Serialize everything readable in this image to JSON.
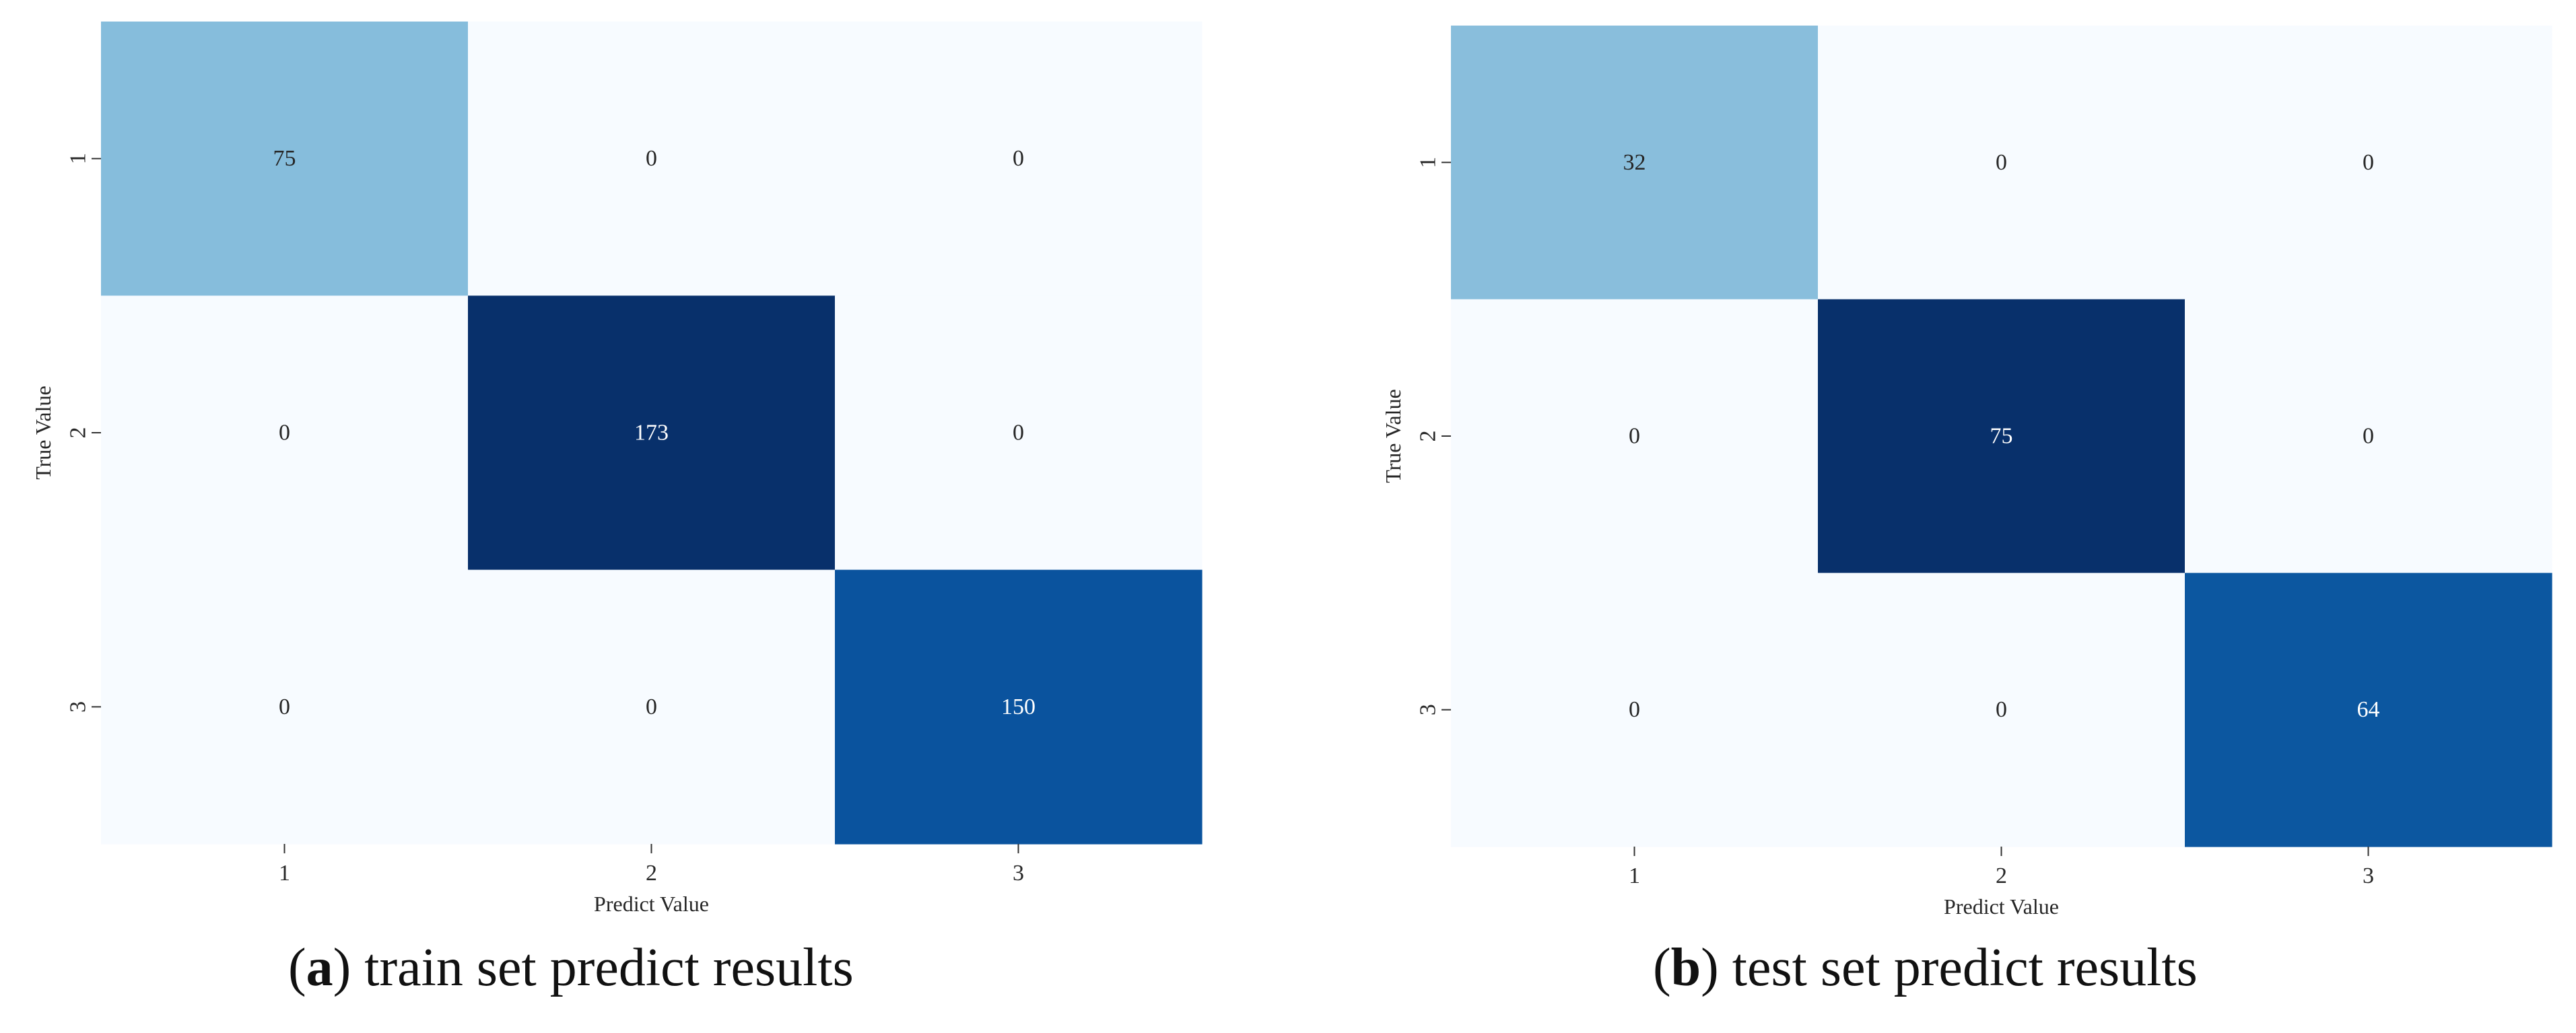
{
  "chart_data": [
    {
      "type": "heatmap",
      "caption": {
        "letter": "a",
        "text": "train set predict results"
      },
      "xlabel": "Predict Value",
      "ylabel": "True Value",
      "x_categories": [
        "1",
        "2",
        "3"
      ],
      "y_categories": [
        "1",
        "2",
        "3"
      ],
      "values": [
        [
          75,
          0,
          0
        ],
        [
          0,
          173,
          0
        ],
        [
          0,
          0,
          150
        ]
      ],
      "colormap": "Blues",
      "colorbar": false,
      "grid": false
    },
    {
      "type": "heatmap",
      "caption": {
        "letter": "b",
        "text": "test set predict results"
      },
      "xlabel": "Predict Value",
      "ylabel": "True Value",
      "x_categories": [
        "1",
        "2",
        "3"
      ],
      "y_categories": [
        "1",
        "2",
        "3"
      ],
      "values": [
        [
          32,
          0,
          0
        ],
        [
          0,
          75,
          0
        ],
        [
          0,
          0,
          64
        ]
      ],
      "colormap": "Blues",
      "colorbar": false,
      "grid": false
    }
  ],
  "colors": {
    "low": "#f7fbff",
    "high": "#08306b",
    "text_dark": "#262626",
    "text_light": "#ffffff"
  }
}
